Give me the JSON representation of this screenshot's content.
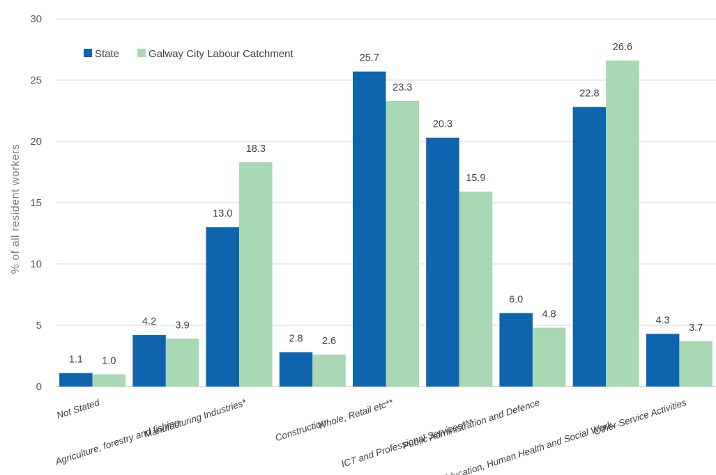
{
  "chart_data": {
    "type": "bar",
    "title": "",
    "xlabel": "",
    "ylabel": "% of all resident workers",
    "ylim": [
      0,
      30
    ],
    "yticks": [
      0,
      5,
      10,
      15,
      20,
      25,
      30
    ],
    "grid": true,
    "legend_position": "top-left",
    "categories": [
      "Not Stated",
      "Agriculture, forestry and fishing",
      "Manufacturing Industries*",
      "Construction",
      "Whole, Retail etc**",
      "ICT and Professional Services***",
      "Public Administration and Defence",
      "Education, Human Health and Social Work...",
      "Other Service Activities"
    ],
    "series": [
      {
        "name": "State",
        "color": "#0e64ad",
        "values": [
          1.1,
          4.2,
          13.0,
          2.8,
          25.7,
          20.3,
          6.0,
          22.8,
          4.3
        ],
        "labels": [
          "1.1",
          "4.2",
          "13.0",
          "2.8",
          "25.7",
          "20.3",
          "6.0",
          "22.8",
          "4.3"
        ]
      },
      {
        "name": "Galway City Labour Catchment",
        "color": "#a8d8b4",
        "values": [
          1.0,
          3.9,
          18.3,
          2.6,
          23.3,
          15.9,
          4.8,
          26.6,
          3.7
        ],
        "labels": [
          "1.0",
          "3.9",
          "18.3",
          "2.6",
          "23.3",
          "15.9",
          "4.8",
          "26.6",
          "3.7"
        ]
      }
    ]
  }
}
